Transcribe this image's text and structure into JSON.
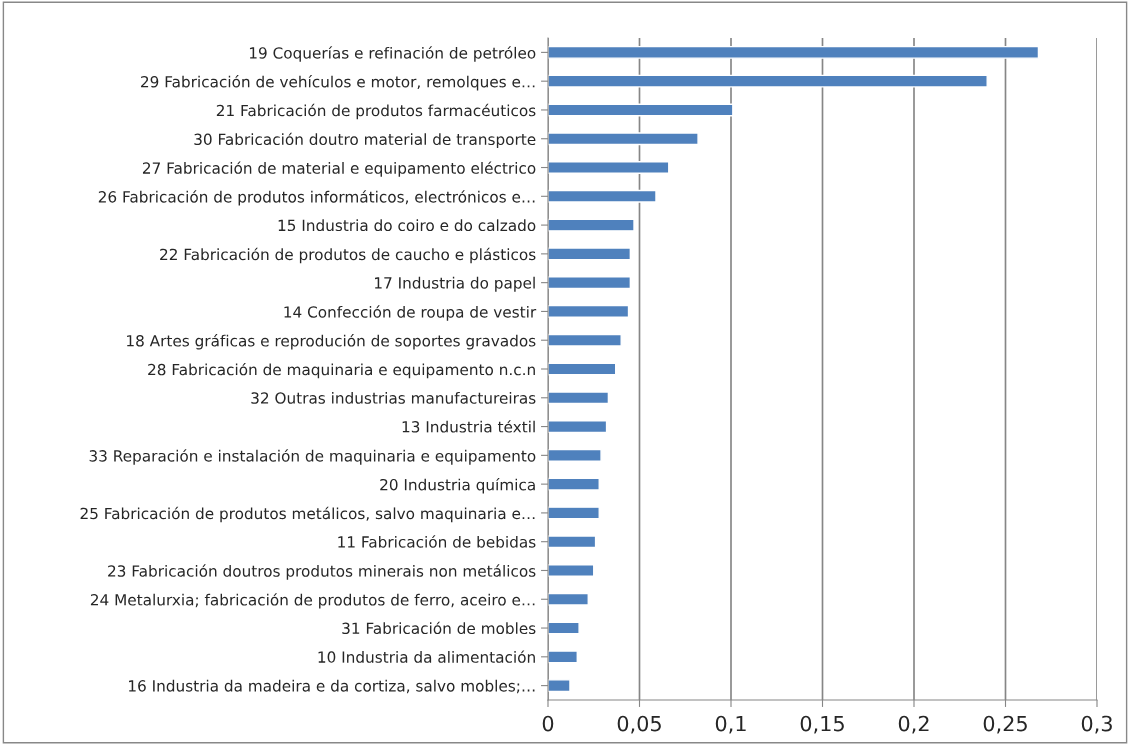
{
  "chart_data": {
    "type": "bar",
    "orientation": "horizontal",
    "categories": [
      "19 Coquerías e refinación de petróleo",
      "29 Fabricación de vehículos e motor, remolques e…",
      "21 Fabricación de produtos farmacéuticos",
      "30 Fabricación doutro material de transporte",
      "27 Fabricación de material e equipamento eléctrico",
      "26 Fabricación de produtos informáticos, electrónicos e…",
      "15 Industria do coiro e do calzado",
      "22 Fabricación de produtos de caucho e plásticos",
      "17 Industria do papel",
      "14 Confección de roupa de vestir",
      "18 Artes gráficas e reprodución de soportes gravados",
      "28 Fabricación de maquinaria e equipamento n.c.n",
      "32 Outras industrias manufactureiras",
      "13 Industria téxtil",
      "33 Reparación e instalación de maquinaria e equipamento",
      "20 Industria química",
      "25 Fabricación de produtos metálicos, salvo maquinaria e…",
      "11 Fabricación de bebidas",
      "23 Fabricación doutros produtos minerais non metálicos",
      "24 Metalurxia; fabricación de produtos de ferro, aceiro e…",
      "31 Fabricación de mobles",
      "10 Industria da alimentación",
      "16 Industria da madeira e da cortiza, salvo mobles;…"
    ],
    "values": [
      0.268,
      0.24,
      0.101,
      0.082,
      0.066,
      0.059,
      0.047,
      0.045,
      0.045,
      0.044,
      0.04,
      0.037,
      0.033,
      0.032,
      0.029,
      0.028,
      0.028,
      0.026,
      0.025,
      0.022,
      0.017,
      0.016,
      0.012
    ],
    "color": "#4f81bd",
    "xlim": [
      0,
      0.3
    ],
    "xticks": [
      {
        "value": 0,
        "label": "0"
      },
      {
        "value": 0.05,
        "label": "0,05"
      },
      {
        "value": 0.1,
        "label": "0,1"
      },
      {
        "value": 0.15,
        "label": "0,15"
      },
      {
        "value": 0.2,
        "label": "0,2"
      },
      {
        "value": 0.25,
        "label": "0,25"
      },
      {
        "value": 0.3,
        "label": "0,3"
      }
    ],
    "grid": "x",
    "legend": false
  }
}
